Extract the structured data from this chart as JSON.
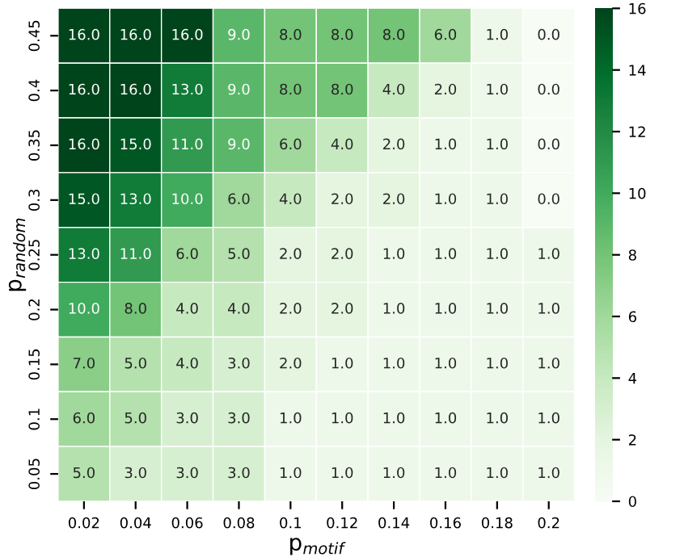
{
  "chart_data": {
    "type": "heatmap",
    "xlabel": "p$_{motif}$",
    "ylabel": "p$_{random}$",
    "categories": [
      "0.02",
      "0.04",
      "0.06",
      "0.08",
      "0.1",
      "0.12",
      "0.14",
      "0.16",
      "0.18",
      "0.2"
    ],
    "y_categories": [
      "0.45",
      "0.4",
      "0.35",
      "0.3",
      "0.25",
      "0.2",
      "0.15",
      "0.1",
      "0.05"
    ],
    "cells": [
      [
        16,
        16,
        16,
        9,
        8,
        8,
        8,
        6,
        1,
        0
      ],
      [
        16,
        16,
        13,
        9,
        8,
        8,
        4,
        2,
        1,
        0
      ],
      [
        16,
        15,
        11,
        9,
        6,
        4,
        2,
        1,
        1,
        0
      ],
      [
        15,
        13,
        10,
        6,
        4,
        2,
        2,
        1,
        1,
        0
      ],
      [
        13,
        11,
        6,
        5,
        2,
        2,
        1,
        1,
        1,
        1
      ],
      [
        10,
        8,
        4,
        4,
        2,
        2,
        1,
        1,
        1,
        1
      ],
      [
        7,
        5,
        4,
        3,
        2,
        1,
        1,
        1,
        1,
        1
      ],
      [
        6,
        5,
        3,
        3,
        1,
        1,
        1,
        1,
        1,
        1
      ],
      [
        5,
        3,
        3,
        3,
        1,
        1,
        1,
        1,
        1,
        1
      ]
    ],
    "cell_labels": [
      [
        "16.0",
        "16.0",
        "16.0",
        "9.0",
        "8.0",
        "8.0",
        "8.0",
        "6.0",
        "1.0",
        "0.0"
      ],
      [
        "16.0",
        "16.0",
        "13.0",
        "9.0",
        "8.0",
        "8.0",
        "4.0",
        "2.0",
        "1.0",
        "0.0"
      ],
      [
        "16.0",
        "15.0",
        "11.0",
        "9.0",
        "6.0",
        "4.0",
        "2.0",
        "1.0",
        "1.0",
        "0.0"
      ],
      [
        "15.0",
        "13.0",
        "10.0",
        "6.0",
        "4.0",
        "2.0",
        "2.0",
        "1.0",
        "1.0",
        "0.0"
      ],
      [
        "13.0",
        "11.0",
        "6.0",
        "5.0",
        "2.0",
        "2.0",
        "1.0",
        "1.0",
        "1.0",
        "1.0"
      ],
      [
        "10.0",
        "8.0",
        "4.0",
        "4.0",
        "2.0",
        "2.0",
        "1.0",
        "1.0",
        "1.0",
        "1.0"
      ],
      [
        "7.0",
        "5.0",
        "4.0",
        "3.0",
        "2.0",
        "1.0",
        "1.0",
        "1.0",
        "1.0",
        "1.0"
      ],
      [
        "6.0",
        "5.0",
        "3.0",
        "3.0",
        "1.0",
        "1.0",
        "1.0",
        "1.0",
        "1.0",
        "1.0"
      ],
      [
        "5.0",
        "3.0",
        "3.0",
        "3.0",
        "1.0",
        "1.0",
        "1.0",
        "1.0",
        "1.0",
        "1.0"
      ]
    ],
    "clim": [
      0,
      16
    ],
    "cticks": [
      0,
      2,
      4,
      6,
      8,
      10,
      12,
      14,
      16
    ]
  }
}
